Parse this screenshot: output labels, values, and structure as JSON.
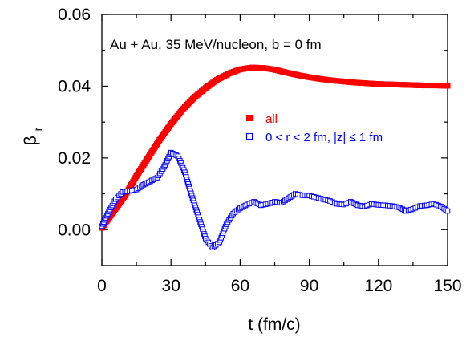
{
  "chart_data": {
    "type": "scatter",
    "title": "",
    "annotation": "Au + Au, 35 MeV/nucleon, b = 0 fm",
    "xlabel": "t (fm/c)",
    "ylabel_main": "β",
    "ylabel_sub": "r",
    "xlim": [
      0,
      150
    ],
    "ylim": [
      -0.01,
      0.06
    ],
    "x_tick_values": [
      0,
      30,
      60,
      90,
      120,
      150
    ],
    "x_ticks": [
      "0",
      "30",
      "60",
      "90",
      "120",
      "150"
    ],
    "y_tick_values": [
      0.0,
      0.02,
      0.04,
      0.06
    ],
    "y_ticks": [
      "0.00",
      "0.02",
      "0.04",
      "0.06"
    ],
    "grid": false,
    "legend_position": "center-right",
    "series": [
      {
        "name": "all",
        "color": "#ff0000",
        "marker": "filled-square",
        "x": [
          0,
          5,
          10,
          15,
          20,
          25,
          30,
          35,
          40,
          45,
          50,
          55,
          60,
          65,
          70,
          75,
          80,
          85,
          90,
          95,
          100,
          105,
          110,
          115,
          120,
          125,
          130,
          135,
          140,
          145,
          150
        ],
        "y": [
          0.0005,
          0.005,
          0.0095,
          0.015,
          0.02,
          0.025,
          0.0295,
          0.0335,
          0.0368,
          0.0395,
          0.0418,
          0.0435,
          0.0447,
          0.0452,
          0.0451,
          0.0446,
          0.0438,
          0.0431,
          0.0425,
          0.042,
          0.0416,
          0.0413,
          0.041,
          0.0408,
          0.0406,
          0.0405,
          0.0404,
          0.0403,
          0.0402,
          0.0402,
          0.0401
        ]
      },
      {
        "name": "0 < r < 2 fm, |z| ≤ 1 fm",
        "color": "#0000ff",
        "marker": "open-square",
        "x": [
          0,
          3,
          6,
          9,
          12,
          15,
          18,
          21,
          24,
          27,
          30,
          33,
          36,
          39,
          42,
          45,
          48,
          51,
          54,
          57,
          60,
          63,
          66,
          69,
          72,
          75,
          78,
          81,
          84,
          87,
          90,
          93,
          96,
          99,
          102,
          105,
          108,
          111,
          114,
          117,
          120,
          123,
          126,
          129,
          132,
          135,
          138,
          141,
          144,
          147,
          150
        ],
        "y": [
          0.001,
          0.005,
          0.0085,
          0.0105,
          0.0108,
          0.0112,
          0.0125,
          0.0135,
          0.0145,
          0.0175,
          0.0215,
          0.0205,
          0.016,
          0.0095,
          0.0035,
          -0.0025,
          -0.005,
          -0.0035,
          0.0015,
          0.0045,
          0.006,
          0.007,
          0.0078,
          0.0068,
          0.0072,
          0.0078,
          0.0075,
          0.0088,
          0.01,
          0.0096,
          0.0095,
          0.009,
          0.0085,
          0.008,
          0.0072,
          0.007,
          0.0078,
          0.0068,
          0.0065,
          0.0072,
          0.0069,
          0.0068,
          0.0066,
          0.0062,
          0.0052,
          0.0058,
          0.0066,
          0.0068,
          0.0072,
          0.0065,
          0.0052
        ]
      }
    ]
  }
}
